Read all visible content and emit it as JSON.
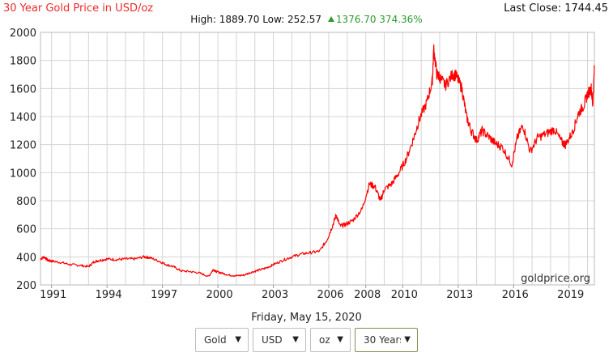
{
  "header": {
    "title": "30 Year Gold Price in USD/oz",
    "last_close": "Last Close: 1744.45",
    "high_text": "High: 1889.70",
    "low_text": "Low: 252.57",
    "change_text": "1376.70",
    "change_pct": "374.36%"
  },
  "watermark": "goldprice.org",
  "date_line": "Friday, May 15, 2020",
  "controls": [
    {
      "label": "Gold",
      "arrow": "▼"
    },
    {
      "label": "USD",
      "arrow": "▼"
    },
    {
      "label": "oz",
      "arrow": "▼"
    },
    {
      "label": "30 Years",
      "arrow": "▼"
    }
  ],
  "colors": {
    "line": "#ff0000",
    "grid": "#d4d4d4",
    "title": "#ee2a2a",
    "gain": "#2a9a2a"
  },
  "chart_data": {
    "type": "line",
    "title": "30 Year Gold Price in USD/oz",
    "xlabel": "",
    "ylabel": "",
    "ylim": [
      200,
      2000
    ],
    "xlim": [
      1990.4,
      2020.37
    ],
    "x_ticks": [
      1991,
      1994,
      1997,
      2000,
      2003,
      2006,
      2008,
      2010,
      2013,
      2016,
      2019
    ],
    "y_ticks": [
      200,
      400,
      600,
      800,
      1000,
      1200,
      1400,
      1600,
      1800,
      2000
    ],
    "grid": true,
    "series": [
      {
        "x": [
          1990.4,
          1990.6,
          1990.8,
          1991.0,
          1991.5,
          1992.0,
          1992.5,
          1993.0,
          1993.3,
          1993.6,
          1994.0,
          1994.5,
          1995.0,
          1995.5,
          1996.0,
          1996.3,
          1996.8,
          1997.2,
          1997.6,
          1998.0,
          1998.5,
          1999.0,
          1999.5,
          1999.75,
          1999.9,
          2000.2,
          2000.6,
          2001.0,
          2001.4,
          2001.8,
          2002.2,
          2002.6,
          2003.0,
          2003.5,
          2004.0,
          2004.5,
          2005.0,
          2005.5,
          2005.9,
          2006.2,
          2006.4,
          2006.6,
          2006.9,
          2007.3,
          2007.8,
          2008.2,
          2008.5,
          2008.8,
          2009.0,
          2009.4,
          2009.8,
          2010.2,
          2010.6,
          2010.9,
          2011.3,
          2011.6,
          2011.68,
          2011.85,
          2012.0,
          2012.3,
          2012.7,
          2012.9,
          2013.2,
          2013.45,
          2013.7,
          2014.0,
          2014.3,
          2014.7,
          2015.0,
          2015.4,
          2015.9,
          2016.2,
          2016.5,
          2016.9,
          2017.3,
          2017.8,
          2018.2,
          2018.6,
          2018.8,
          2019.2,
          2019.5,
          2019.8,
          2020.0,
          2020.2,
          2020.28,
          2020.37
        ],
        "y": [
          385,
          400,
          375,
          370,
          360,
          345,
          340,
          330,
          365,
          375,
          385,
          380,
          385,
          385,
          400,
          395,
          370,
          345,
          330,
          300,
          295,
          285,
          260,
          310,
          295,
          285,
          270,
          265,
          270,
          290,
          305,
          320,
          345,
          375,
          400,
          420,
          430,
          440,
          520,
          620,
          700,
          620,
          630,
          660,
          740,
          920,
          900,
          800,
          880,
          920,
          1000,
          1100,
          1250,
          1380,
          1500,
          1650,
          1880,
          1700,
          1680,
          1620,
          1700,
          1690,
          1600,
          1400,
          1300,
          1230,
          1300,
          1250,
          1210,
          1180,
          1060,
          1250,
          1340,
          1150,
          1250,
          1280,
          1310,
          1220,
          1200,
          1290,
          1420,
          1480,
          1560,
          1600,
          1480,
          1744
        ]
      }
    ]
  }
}
